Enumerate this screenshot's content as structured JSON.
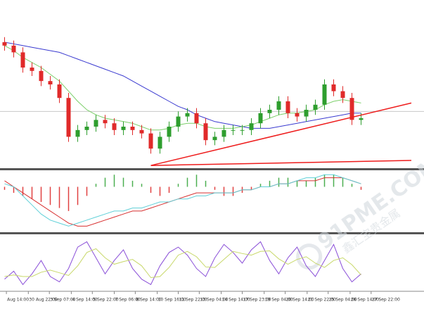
{
  "chart_data": [
    {
      "type": "candlestick",
      "xlim": [
        -0.5,
        44.5
      ],
      "ylim": [
        0,
        100
      ],
      "up_color": "#2e9e2e",
      "down_color": "#e02a2a",
      "ohlc": {
        "open": [
          75,
          73,
          69,
          60,
          58,
          52,
          50,
          42,
          19,
          23,
          25,
          29,
          27,
          23,
          25,
          23,
          21,
          12,
          19,
          25,
          31,
          33,
          27,
          17,
          19,
          23,
          23,
          23,
          27,
          33,
          35,
          40,
          33,
          31,
          35,
          38,
          50,
          46,
          42,
          29
        ],
        "high": [
          78,
          76,
          72,
          63,
          61,
          55,
          53,
          45,
          26,
          28,
          32,
          32,
          30,
          28,
          28,
          26,
          24,
          22,
          28,
          34,
          36,
          36,
          30,
          22,
          26,
          26,
          26,
          30,
          36,
          38,
          43,
          43,
          36,
          38,
          41,
          53,
          53,
          49,
          45,
          33
        ],
        "low": [
          70,
          66,
          57,
          55,
          49,
          47,
          39,
          16,
          16,
          20,
          22,
          24,
          20,
          20,
          20,
          18,
          9,
          9,
          16,
          22,
          28,
          24,
          14,
          14,
          16,
          20,
          20,
          20,
          24,
          30,
          32,
          30,
          28,
          28,
          32,
          35,
          43,
          39,
          26,
          26
        ],
        "close": [
          73,
          69,
          60,
          58,
          52,
          50,
          42,
          19,
          23,
          25,
          29,
          27,
          23,
          25,
          23,
          21,
          12,
          19,
          25,
          31,
          33,
          27,
          17,
          19,
          23,
          23,
          23,
          27,
          33,
          35,
          40,
          33,
          31,
          35,
          38,
          50,
          46,
          42,
          29,
          30
        ]
      },
      "series": [
        {
          "color": "#3a3ad0",
          "values": [
            75,
            74,
            73,
            72,
            71,
            70,
            69,
            67,
            65,
            63,
            61,
            59,
            57,
            55,
            52,
            49,
            46,
            43,
            40,
            37,
            35,
            32,
            30,
            28,
            27,
            26,
            25,
            24,
            24,
            24,
            25,
            26,
            27,
            28,
            29,
            30,
            31,
            32,
            33,
            33
          ]
        },
        {
          "color": "#7ccf6a",
          "values": [
            73,
            70,
            66,
            63,
            60,
            56,
            52,
            46,
            40,
            35,
            32,
            30,
            29,
            28,
            27,
            25,
            23,
            23,
            24,
            26,
            27,
            27,
            25,
            24,
            24,
            24,
            25,
            26,
            28,
            30,
            32,
            33,
            33,
            34,
            35,
            38,
            40,
            41,
            40,
            39
          ]
        }
      ],
      "hlines": [
        {
          "value": 34,
          "color": "#c8c8c8"
        }
      ],
      "trendlines": [
        {
          "x": [
            16,
            44.5
          ],
          "values": [
            2,
            39
          ],
          "color": "#ee1c1c"
        },
        {
          "x": [
            16,
            44.5
          ],
          "values": [
            2,
            5
          ],
          "color": "#ee1c1c"
        }
      ]
    },
    {
      "type": "macd",
      "xlim": [
        -0.5,
        44.5
      ],
      "ylim": [
        -15,
        5
      ],
      "pos_color": "#4caf50",
      "neg_color": "#e04040",
      "values": [
        -1,
        -2,
        -3,
        -4,
        -5,
        -6,
        -7,
        -8,
        -6,
        -3,
        1,
        3,
        4,
        3,
        2,
        1,
        -2,
        -3,
        -2,
        1,
        3,
        4,
        2,
        -1,
        -3,
        -3,
        -2,
        -1,
        1,
        2,
        3,
        3,
        2,
        2,
        3,
        4,
        4,
        3,
        1,
        -1
      ],
      "series": [
        {
          "color": "#d83030",
          "values": [
            2,
            0,
            -2,
            -4,
            -6,
            -8,
            -10,
            -12,
            -13,
            -13,
            -12,
            -11,
            -10,
            -9,
            -8,
            -8,
            -7,
            -6,
            -5,
            -4,
            -3,
            -2,
            -2,
            -2,
            -2,
            -2,
            -1,
            -1,
            0,
            0,
            1,
            1,
            2,
            2,
            2,
            3,
            3,
            3,
            2,
            1
          ]
        },
        {
          "color": "#5fd0d8",
          "values": [
            1,
            0,
            -3,
            -6,
            -9,
            -11,
            -12,
            -13,
            -12,
            -11,
            -10,
            -9,
            -8,
            -8,
            -7,
            -7,
            -6,
            -5,
            -5,
            -4,
            -4,
            -3,
            -3,
            -2,
            -2,
            -2,
            -1,
            -1,
            0,
            0,
            1,
            1,
            2,
            3,
            3,
            4,
            4,
            3,
            2,
            1
          ]
        }
      ]
    },
    {
      "type": "line",
      "xlim": [
        -0.5,
        44.5
      ],
      "ylim": [
        0,
        100
      ],
      "series": [
        {
          "color": "#8a4fd8",
          "values": [
            20,
            35,
            10,
            30,
            55,
            25,
            15,
            40,
            80,
            90,
            60,
            30,
            55,
            75,
            40,
            20,
            10,
            45,
            70,
            80,
            65,
            40,
            25,
            60,
            85,
            70,
            50,
            75,
            90,
            55,
            30,
            60,
            80,
            45,
            25,
            55,
            85,
            40,
            15,
            30
          ]
        },
        {
          "color": "#c8d86a",
          "values": [
            25,
            28,
            25,
            25,
            33,
            37,
            32,
            27,
            45,
            70,
            77,
            60,
            48,
            53,
            57,
            45,
            23,
            25,
            42,
            65,
            72,
            62,
            43,
            42,
            57,
            72,
            68,
            65,
            72,
            73,
            58,
            48,
            57,
            62,
            50,
            42,
            55,
            60,
            47,
            28
          ]
        }
      ],
      "xticks": [
        {
          "value": 0.2,
          "label": "Aug 14:00"
        },
        {
          "value": 2.6,
          "label": "30 Aug 22:00"
        },
        {
          "value": 4.9,
          "label": "3 Sep 07:00"
        },
        {
          "value": 7.3,
          "label": "4 Sep 14:00"
        },
        {
          "value": 9.6,
          "label": "5 Sep 22:00"
        },
        {
          "value": 12.0,
          "label": "7 Sep 06:00"
        },
        {
          "value": 14.3,
          "label": "8 Sep 14:00"
        },
        {
          "value": 16.7,
          "label": "10 Sep 16:00"
        },
        {
          "value": 19.0,
          "label": "11 Sep 22:00"
        },
        {
          "value": 21.3,
          "label": "13 Sep 04:00"
        },
        {
          "value": 23.7,
          "label": "14 Sep 14:00"
        },
        {
          "value": 26.0,
          "label": "17 Sep 23:00"
        },
        {
          "value": 28.4,
          "label": "19 Sep 04:00"
        },
        {
          "value": 30.7,
          "label": "20 Sep 14:00"
        },
        {
          "value": 33.1,
          "label": "21 Sep 22:00"
        },
        {
          "value": 35.4,
          "label": "25 Sep 04:00"
        },
        {
          "value": 37.8,
          "label": "26 Sep 14:00"
        },
        {
          "value": 40.1,
          "label": "27 Sep 22:00"
        }
      ]
    }
  ],
  "watermark": {
    "site": "91PME.COM",
    "brand": "鑫汇宝贵金属"
  }
}
